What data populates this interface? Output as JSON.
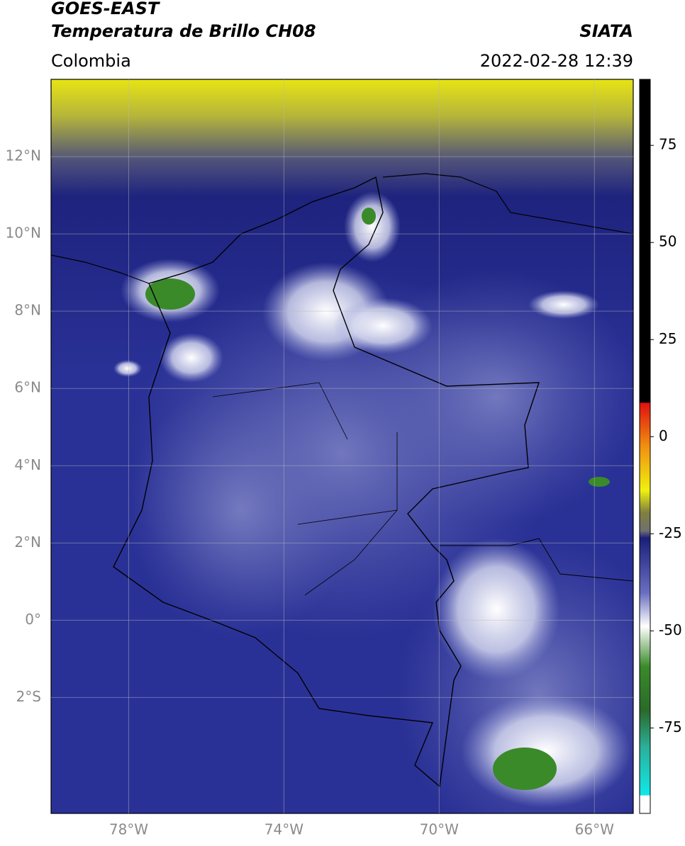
{
  "header": {
    "title": "GOES-EAST",
    "subtitle": "Temperatura de Brillo CH08",
    "source": "SIATA",
    "region": "Colombia",
    "timestamp": "2022-02-28 12:39"
  },
  "map": {
    "lat_range": [
      -5,
      14
    ],
    "lon_range": [
      -80,
      -65
    ],
    "lat_ticks": [
      {
        "value": 12,
        "label": "12°N"
      },
      {
        "value": 10,
        "label": "10°N"
      },
      {
        "value": 8,
        "label": "8°N"
      },
      {
        "value": 6,
        "label": "6°N"
      },
      {
        "value": 4,
        "label": "4°N"
      },
      {
        "value": 2,
        "label": "2°N"
      },
      {
        "value": 0,
        "label": "0°"
      },
      {
        "value": -2,
        "label": "2°S"
      }
    ],
    "lon_ticks": [
      {
        "value": -78,
        "label": "78°W"
      },
      {
        "value": -74,
        "label": "74°W"
      },
      {
        "value": -70,
        "label": "70°W"
      },
      {
        "value": -66,
        "label": "66°W"
      }
    ]
  },
  "colorbar": {
    "range": [
      -97,
      92
    ],
    "ticks": [
      75,
      50,
      25,
      0,
      -25,
      -50,
      -75
    ]
  }
}
